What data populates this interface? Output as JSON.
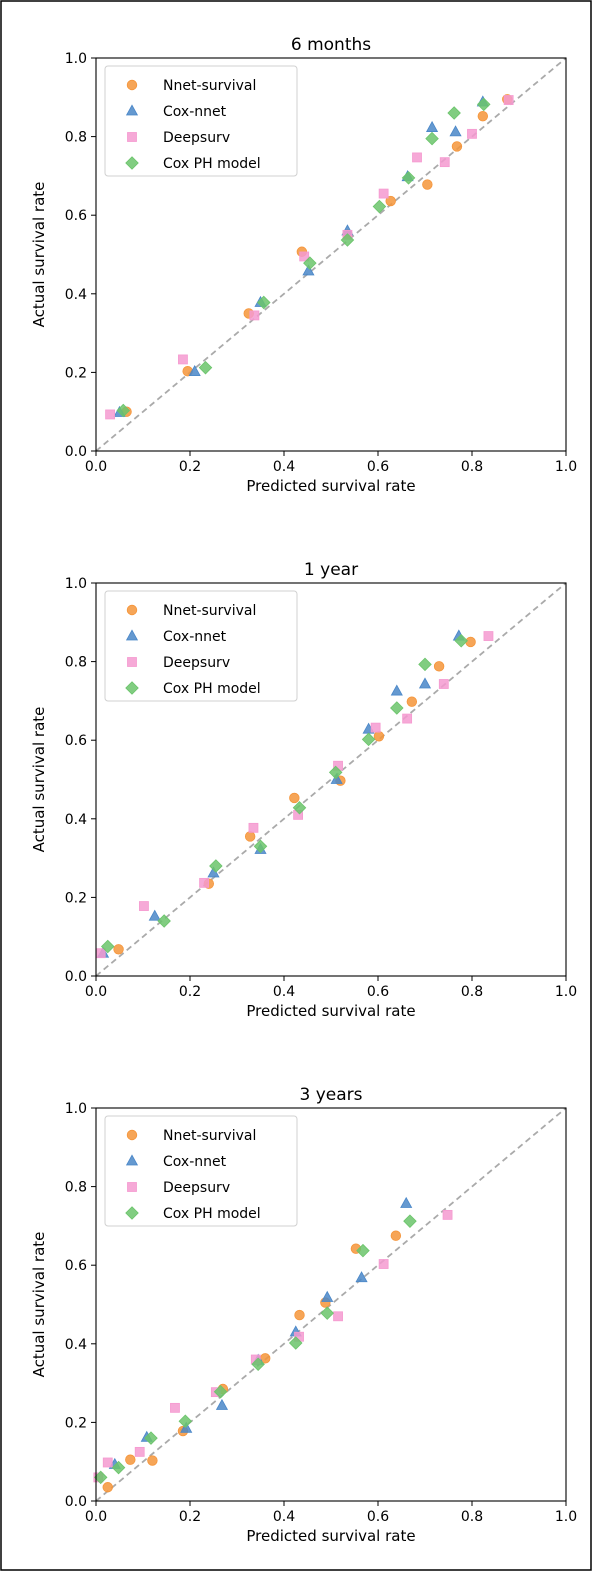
{
  "colors": {
    "nnet": "#f5953a",
    "coxnnet": "#4a87c8",
    "deepsurv": "#f59ad0",
    "coxph": "#6bc46b",
    "diagonal": "#aaaaaa"
  },
  "chart_data": [
    {
      "type": "scatter",
      "title": "6 months",
      "xlabel": "Predicted survival rate",
      "ylabel": "Actual survival rate",
      "xlim": [
        0,
        1
      ],
      "ylim": [
        0,
        1
      ],
      "xticks": [
        "0.0",
        "0.2",
        "0.4",
        "0.6",
        "0.8",
        "1.0"
      ],
      "yticks": [
        "0.0",
        "0.2",
        "0.4",
        "0.6",
        "0.8",
        "1.0"
      ],
      "grid": false,
      "legend_position": "top-left",
      "reference_line": "y = x (dashed)",
      "series": [
        {
          "name": "Nnet-survival",
          "marker": "circle",
          "colorKey": "nnet",
          "points": [
            [
              0.065,
              0.1
            ],
            [
              0.195,
              0.203
            ],
            [
              0.325,
              0.35
            ],
            [
              0.438,
              0.507
            ],
            [
              0.535,
              0.551
            ],
            [
              0.627,
              0.636
            ],
            [
              0.705,
              0.678
            ],
            [
              0.768,
              0.775
            ],
            [
              0.823,
              0.852
            ],
            [
              0.875,
              0.895
            ]
          ]
        },
        {
          "name": "Cox-nnet",
          "marker": "triangle",
          "colorKey": "coxnnet",
          "points": [
            [
              0.05,
              0.098
            ],
            [
              0.21,
              0.202
            ],
            [
              0.35,
              0.378
            ],
            [
              0.452,
              0.458
            ],
            [
              0.535,
              0.56
            ],
            [
              0.663,
              0.698
            ],
            [
              0.715,
              0.823
            ],
            [
              0.765,
              0.812
            ],
            [
              0.823,
              0.888
            ]
          ]
        },
        {
          "name": "Deepsurv",
          "marker": "square",
          "colorKey": "deepsurv",
          "points": [
            [
              0.03,
              0.093
            ],
            [
              0.185,
              0.233
            ],
            [
              0.337,
              0.345
            ],
            [
              0.443,
              0.495
            ],
            [
              0.535,
              0.55
            ],
            [
              0.612,
              0.655
            ],
            [
              0.683,
              0.747
            ],
            [
              0.742,
              0.735
            ],
            [
              0.8,
              0.807
            ],
            [
              0.878,
              0.893
            ]
          ]
        },
        {
          "name": "Cox PH model",
          "marker": "diamond",
          "colorKey": "coxph",
          "points": [
            [
              0.058,
              0.103
            ],
            [
              0.233,
              0.212
            ],
            [
              0.357,
              0.378
            ],
            [
              0.455,
              0.478
            ],
            [
              0.535,
              0.537
            ],
            [
              0.603,
              0.622
            ],
            [
              0.665,
              0.695
            ],
            [
              0.715,
              0.795
            ],
            [
              0.762,
              0.86
            ],
            [
              0.825,
              0.882
            ]
          ]
        }
      ]
    },
    {
      "type": "scatter",
      "title": "1 year",
      "xlabel": "Predicted survival rate",
      "ylabel": "Actual survival rate",
      "xlim": [
        0,
        1
      ],
      "ylim": [
        0,
        1
      ],
      "xticks": [
        "0.0",
        "0.2",
        "0.4",
        "0.6",
        "0.8",
        "1.0"
      ],
      "yticks": [
        "0.0",
        "0.2",
        "0.4",
        "0.6",
        "0.8",
        "1.0"
      ],
      "grid": false,
      "legend_position": "top-left",
      "reference_line": "y = x (dashed)",
      "series": [
        {
          "name": "Nnet-survival",
          "marker": "circle",
          "colorKey": "nnet",
          "points": [
            [
              0.048,
              0.068
            ],
            [
              0.24,
              0.235
            ],
            [
              0.328,
              0.355
            ],
            [
              0.422,
              0.453
            ],
            [
              0.52,
              0.497
            ],
            [
              0.602,
              0.61
            ],
            [
              0.672,
              0.698
            ],
            [
              0.73,
              0.788
            ],
            [
              0.797,
              0.85
            ]
          ]
        },
        {
          "name": "Cox-nnet",
          "marker": "triangle",
          "colorKey": "coxnnet",
          "points": [
            [
              0.015,
              0.058
            ],
            [
              0.125,
              0.152
            ],
            [
              0.25,
              0.262
            ],
            [
              0.35,
              0.322
            ],
            [
              0.512,
              0.5
            ],
            [
              0.58,
              0.628
            ],
            [
              0.64,
              0.725
            ],
            [
              0.7,
              0.743
            ],
            [
              0.772,
              0.865
            ]
          ]
        },
        {
          "name": "Deepsurv",
          "marker": "square",
          "colorKey": "deepsurv",
          "points": [
            [
              0.01,
              0.058
            ],
            [
              0.102,
              0.178
            ],
            [
              0.23,
              0.237
            ],
            [
              0.335,
              0.377
            ],
            [
              0.43,
              0.41
            ],
            [
              0.515,
              0.535
            ],
            [
              0.595,
              0.632
            ],
            [
              0.662,
              0.655
            ],
            [
              0.74,
              0.743
            ],
            [
              0.835,
              0.865
            ]
          ]
        },
        {
          "name": "Cox PH model",
          "marker": "diamond",
          "colorKey": "coxph",
          "points": [
            [
              0.025,
              0.075
            ],
            [
              0.145,
              0.14
            ],
            [
              0.255,
              0.28
            ],
            [
              0.35,
              0.33
            ],
            [
              0.433,
              0.428
            ],
            [
              0.51,
              0.518
            ],
            [
              0.58,
              0.602
            ],
            [
              0.64,
              0.682
            ],
            [
              0.7,
              0.793
            ],
            [
              0.777,
              0.853
            ]
          ]
        }
      ]
    },
    {
      "type": "scatter",
      "title": "3 years",
      "xlabel": "Predicted survival rate",
      "ylabel": "Actual survival rate",
      "xlim": [
        0,
        1
      ],
      "ylim": [
        0,
        1
      ],
      "xticks": [
        "0.0",
        "0.2",
        "0.4",
        "0.6",
        "0.8",
        "1.0"
      ],
      "yticks": [
        "0.0",
        "0.2",
        "0.4",
        "0.6",
        "0.8",
        "1.0"
      ],
      "grid": false,
      "legend_position": "top-left",
      "reference_line": "y = x (dashed)",
      "series": [
        {
          "name": "Nnet-survival",
          "marker": "circle",
          "colorKey": "nnet",
          "points": [
            [
              0.025,
              0.035
            ],
            [
              0.073,
              0.105
            ],
            [
              0.12,
              0.103
            ],
            [
              0.185,
              0.178
            ],
            [
              0.27,
              0.285
            ],
            [
              0.36,
              0.363
            ],
            [
              0.433,
              0.473
            ],
            [
              0.488,
              0.505
            ],
            [
              0.553,
              0.642
            ],
            [
              0.638,
              0.675
            ]
          ]
        },
        {
          "name": "Cox-nnet",
          "marker": "triangle",
          "colorKey": "coxnnet",
          "points": [
            [
              0.04,
              0.093
            ],
            [
              0.108,
              0.162
            ],
            [
              0.192,
              0.185
            ],
            [
              0.268,
              0.243
            ],
            [
              0.345,
              0.358
            ],
            [
              0.425,
              0.43
            ],
            [
              0.492,
              0.518
            ],
            [
              0.565,
              0.568
            ],
            [
              0.66,
              0.757
            ]
          ]
        },
        {
          "name": "Deepsurv",
          "marker": "square",
          "colorKey": "deepsurv",
          "points": [
            [
              0.005,
              0.06
            ],
            [
              0.025,
              0.098
            ],
            [
              0.093,
              0.125
            ],
            [
              0.168,
              0.237
            ],
            [
              0.255,
              0.277
            ],
            [
              0.34,
              0.36
            ],
            [
              0.432,
              0.418
            ],
            [
              0.515,
              0.47
            ],
            [
              0.612,
              0.603
            ],
            [
              0.748,
              0.728
            ]
          ]
        },
        {
          "name": "Cox PH model",
          "marker": "diamond",
          "colorKey": "coxph",
          "points": [
            [
              0.01,
              0.06
            ],
            [
              0.048,
              0.085
            ],
            [
              0.117,
              0.16
            ],
            [
              0.19,
              0.203
            ],
            [
              0.265,
              0.278
            ],
            [
              0.345,
              0.348
            ],
            [
              0.425,
              0.402
            ],
            [
              0.492,
              0.478
            ],
            [
              0.568,
              0.637
            ],
            [
              0.668,
              0.712
            ]
          ]
        }
      ]
    }
  ]
}
